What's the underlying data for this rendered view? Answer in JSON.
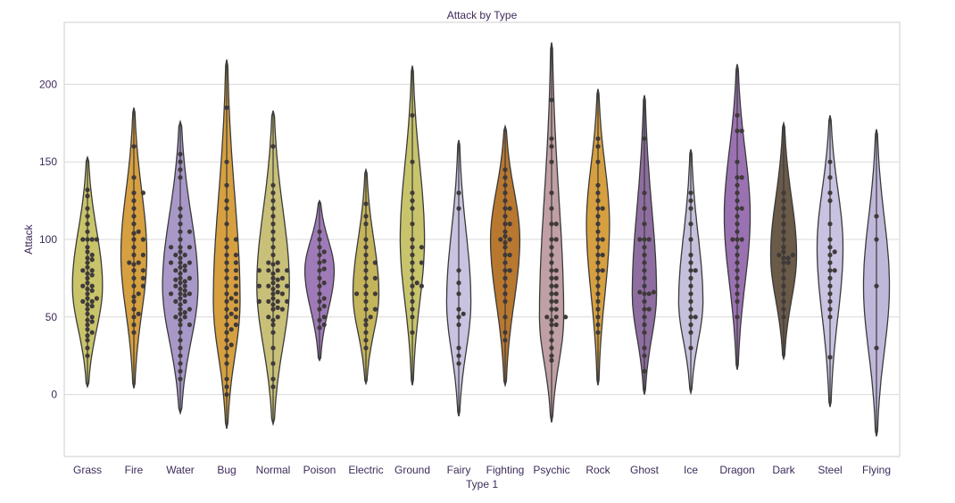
{
  "chart_data": {
    "type": "violin",
    "title": "Attack by Type",
    "xlabel": "Type 1",
    "ylabel": "Attack",
    "ylim": [
      -40,
      240
    ],
    "yticks": [
      0,
      50,
      100,
      150,
      200
    ],
    "ytick_labels": [
      "0",
      "50",
      "100",
      "150",
      "200"
    ],
    "grid": true,
    "categories": [
      "Grass",
      "Fire",
      "Water",
      "Bug",
      "Normal",
      "Poison",
      "Electric",
      "Ground",
      "Fairy",
      "Fighting",
      "Psychic",
      "Rock",
      "Ghost",
      "Ice",
      "Dragon",
      "Dark",
      "Steel",
      "Flying"
    ],
    "violins": [
      {
        "name": "Grass",
        "color": "#c9c46a",
        "min": 5,
        "max": 153,
        "mode": 70,
        "width": 0.72
      },
      {
        "name": "Fire",
        "color": "#d6a040",
        "min": 4,
        "max": 185,
        "mode": 90,
        "width": 0.62
      },
      {
        "name": "Water",
        "color": "#a898c8",
        "min": -12,
        "max": 176,
        "mode": 70,
        "width": 0.85
      },
      {
        "name": "Bug",
        "color": "#d6a040",
        "min": -22,
        "max": 216,
        "mode": 60,
        "width": 0.64
      },
      {
        "name": "Normal",
        "color": "#c8c078",
        "min": -19,
        "max": 183,
        "mode": 70,
        "width": 0.78
      },
      {
        "name": "Poison",
        "color": "#9f7ab8",
        "min": 22,
        "max": 125,
        "mode": 80,
        "width": 0.7
      },
      {
        "name": "Electric",
        "color": "#c4b45c",
        "min": 7,
        "max": 145,
        "mode": 65,
        "width": 0.62
      },
      {
        "name": "Ground",
        "color": "#c8c46c",
        "min": 6,
        "max": 212,
        "mode": 100,
        "width": 0.58
      },
      {
        "name": "Fairy",
        "color": "#c9c2e0",
        "min": -14,
        "max": 164,
        "mode": 60,
        "width": 0.58
      },
      {
        "name": "Fighting",
        "color": "#b87830",
        "min": 6,
        "max": 173,
        "mode": 100,
        "width": 0.7
      },
      {
        "name": "Psychic",
        "color": "#c0a0a4",
        "min": -18,
        "max": 227,
        "mode": 50,
        "width": 0.58
      },
      {
        "name": "Rock",
        "color": "#d6a040",
        "min": 6,
        "max": 197,
        "mode": 110,
        "width": 0.55
      },
      {
        "name": "Ghost",
        "color": "#8e6ea0",
        "min": 0,
        "max": 193,
        "mode": 65,
        "width": 0.58
      },
      {
        "name": "Ice",
        "color": "#c6c0dc",
        "min": 1,
        "max": 158,
        "mode": 60,
        "width": 0.58
      },
      {
        "name": "Dragon",
        "color": "#9a72b2",
        "min": 16,
        "max": 213,
        "mode": 115,
        "width": 0.62
      },
      {
        "name": "Dark",
        "color": "#6a5a48",
        "min": 23,
        "max": 175,
        "mode": 90,
        "width": 0.62
      },
      {
        "name": "Steel",
        "color": "#c9c2e0",
        "min": -8,
        "max": 180,
        "mode": 95,
        "width": 0.62
      },
      {
        "name": "Flying",
        "color": "#c0b8da",
        "min": -27,
        "max": 171,
        "mode": 70,
        "width": 0.62
      }
    ],
    "swarm_points": {
      "Grass": [
        62,
        62,
        100,
        132,
        128,
        90,
        85,
        80,
        75,
        70,
        65,
        60,
        55,
        50,
        45,
        40,
        35,
        30,
        25,
        100,
        95,
        88,
        78,
        68,
        58,
        48,
        38,
        100,
        105,
        110,
        115,
        120,
        82,
        72,
        52,
        42,
        92,
        87,
        77,
        67,
        57,
        47,
        100,
        60,
        70,
        80
      ],
      "Fire": [
        160,
        140,
        130,
        120,
        115,
        110,
        105,
        100,
        95,
        90,
        85,
        85,
        80,
        75,
        70,
        65,
        60,
        55,
        50,
        45,
        40,
        100,
        90,
        80,
        70,
        130,
        125,
        75,
        84,
        104,
        63,
        52
      ],
      "Water": [
        155,
        150,
        145,
        140,
        120,
        115,
        110,
        105,
        100,
        95,
        95,
        90,
        90,
        85,
        85,
        80,
        80,
        75,
        75,
        70,
        70,
        65,
        65,
        60,
        60,
        55,
        55,
        50,
        50,
        45,
        45,
        40,
        35,
        30,
        25,
        20,
        15,
        10,
        92,
        88,
        82,
        78,
        72,
        68,
        62,
        58,
        74,
        67,
        53,
        64,
        73,
        83,
        105,
        95,
        85,
        65,
        48,
        52
      ],
      "Bug": [
        185,
        150,
        135,
        125,
        120,
        110,
        100,
        95,
        90,
        90,
        85,
        80,
        80,
        75,
        70,
        70,
        65,
        60,
        60,
        55,
        55,
        50,
        50,
        45,
        45,
        40,
        35,
        30,
        25,
        20,
        10,
        5,
        0,
        65,
        75,
        85,
        100,
        62,
        52,
        42,
        32
      ],
      "Normal": [
        160,
        135,
        130,
        125,
        120,
        115,
        110,
        105,
        100,
        95,
        90,
        85,
        85,
        80,
        80,
        75,
        75,
        70,
        70,
        70,
        65,
        65,
        60,
        60,
        60,
        55,
        55,
        50,
        50,
        45,
        40,
        30,
        20,
        10,
        5,
        80,
        72,
        68,
        58,
        84,
        62,
        78,
        66,
        74,
        56,
        80,
        60,
        70,
        48
      ],
      "Poison": [
        105,
        100,
        95,
        92,
        90,
        85,
        80,
        75,
        70,
        65,
        62,
        60,
        57,
        55,
        50,
        48,
        45,
        43,
        86,
        72,
        81
      ],
      "Electric": [
        123,
        115,
        110,
        100,
        95,
        90,
        85,
        80,
        75,
        70,
        65,
        65,
        60,
        55,
        50,
        45,
        40,
        35,
        30,
        85,
        75,
        65,
        55,
        48
      ],
      "Ground": [
        180,
        150,
        130,
        125,
        120,
        110,
        100,
        95,
        90,
        85,
        80,
        75,
        70,
        70,
        65,
        60,
        55,
        50,
        40,
        95,
        85,
        72
      ],
      "Fairy": [
        130,
        120,
        80,
        72,
        65,
        55,
        52,
        50,
        45,
        30,
        25,
        20
      ],
      "Fighting": [
        145,
        140,
        135,
        130,
        125,
        120,
        115,
        110,
        105,
        102,
        100,
        98,
        95,
        90,
        85,
        80,
        75,
        70,
        65,
        60,
        50,
        40,
        35,
        100,
        110,
        90,
        80,
        120
      ],
      "Psychic": [
        190,
        165,
        160,
        150,
        130,
        120,
        110,
        100,
        95,
        90,
        85,
        80,
        75,
        70,
        65,
        60,
        55,
        50,
        50,
        50,
        45,
        45,
        40,
        35,
        30,
        25,
        22,
        60,
        70,
        80,
        100,
        110,
        75,
        65,
        55,
        48
      ],
      "Rock": [
        165,
        160,
        150,
        135,
        130,
        125,
        120,
        115,
        110,
        105,
        100,
        95,
        90,
        85,
        80,
        75,
        70,
        65,
        60,
        55,
        50,
        45,
        40,
        100,
        80,
        120,
        90
      ],
      "Ghost": [
        165,
        130,
        120,
        110,
        100,
        95,
        90,
        85,
        80,
        75,
        70,
        66,
        65,
        60,
        55,
        50,
        45,
        40,
        30,
        25,
        15,
        100,
        100,
        66,
        65,
        55
      ],
      "Ice": [
        130,
        125,
        120,
        110,
        100,
        90,
        85,
        80,
        75,
        70,
        65,
        60,
        55,
        50,
        45,
        40,
        30,
        50,
        80
      ],
      "Dragon": [
        180,
        170,
        170,
        150,
        140,
        135,
        130,
        125,
        120,
        115,
        110,
        105,
        100,
        100,
        95,
        90,
        85,
        80,
        75,
        70,
        65,
        60,
        50,
        120,
        100,
        140
      ],
      "Dark": [
        130,
        125,
        120,
        115,
        110,
        105,
        100,
        95,
        92,
        90,
        88,
        85,
        80,
        75,
        70,
        65,
        60,
        55,
        50,
        90,
        88,
        85
      ],
      "Steel": [
        150,
        140,
        130,
        125,
        110,
        100,
        95,
        90,
        85,
        80,
        75,
        70,
        65,
        60,
        55,
        50,
        24,
        92,
        80
      ],
      "Flying": [
        115,
        100,
        70,
        30
      ]
    }
  }
}
